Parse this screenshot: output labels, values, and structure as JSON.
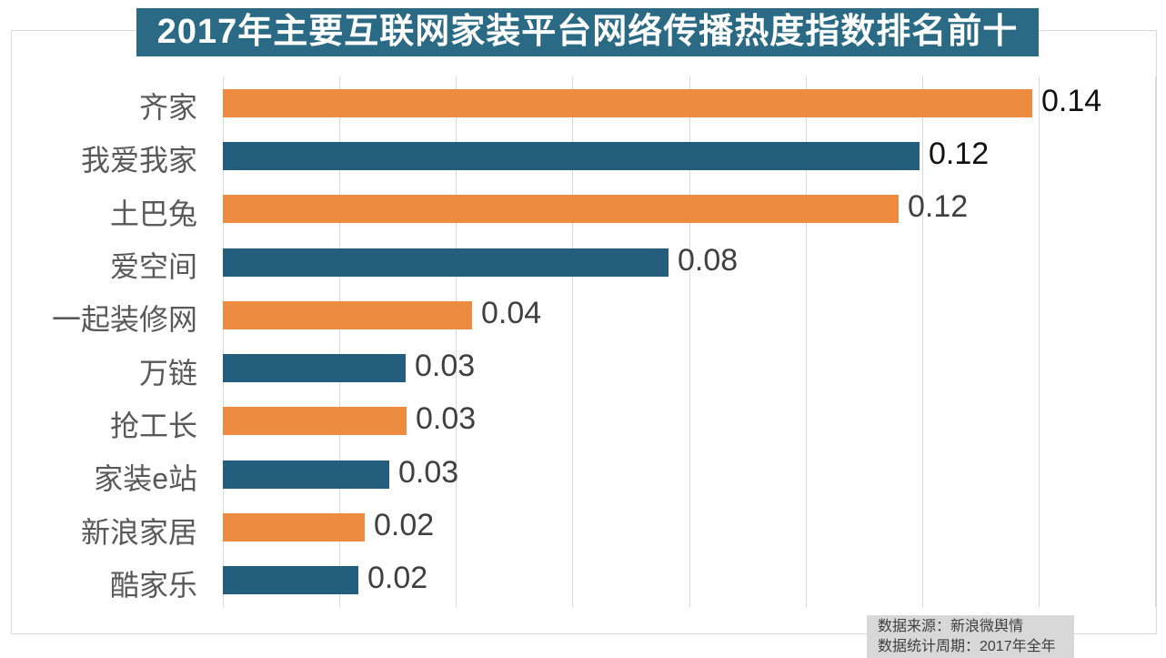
{
  "title": {
    "text": "2017年主要互联网家装平台网络传播热度指数排名前十",
    "background_color": "#2a6a84",
    "text_color": "#ffffff"
  },
  "source": {
    "line1": "数据来源：新浪微舆情",
    "line2": "数据统计周期：2017年全年"
  },
  "chart_data": {
    "type": "bar",
    "orientation": "horizontal",
    "title": "2017年主要互联网家装平台网络传播热度指数排名前十",
    "xlabel": "",
    "ylabel": "",
    "xlim": [
      0,
      0.16
    ],
    "gridline_interval": 0.02,
    "grid": true,
    "legend": false,
    "categories": [
      "齐家",
      "我爱我家",
      "土巴兔",
      "爱空间",
      "一起装修网",
      "万链",
      "抢工长",
      "家装e站",
      "新浪家居",
      "酷家乐"
    ],
    "values": [
      0.14,
      0.12,
      0.12,
      0.08,
      0.04,
      0.03,
      0.03,
      0.03,
      0.02,
      0.02
    ],
    "items": [
      {
        "label": "齐家",
        "display_value": "0.14",
        "bar_length_est": 0.139,
        "bar_color": "#ed8c41",
        "value_color": "#111111"
      },
      {
        "label": "我爱我家",
        "display_value": "0.12",
        "bar_length_est": 0.1195,
        "bar_color": "#235e7d",
        "value_color": "#111111"
      },
      {
        "label": "土巴兔",
        "display_value": "0.12",
        "bar_length_est": 0.116,
        "bar_color": "#ed8c41",
        "value_color": "#404040"
      },
      {
        "label": "爱空间",
        "display_value": "0.08",
        "bar_length_est": 0.0765,
        "bar_color": "#235e7d",
        "value_color": "#404040"
      },
      {
        "label": "一起装修网",
        "display_value": "0.04",
        "bar_length_est": 0.0427,
        "bar_color": "#ed8c41",
        "value_color": "#404040"
      },
      {
        "label": "万链",
        "display_value": "0.03",
        "bar_length_est": 0.0314,
        "bar_color": "#235e7d",
        "value_color": "#404040"
      },
      {
        "label": "抢工长",
        "display_value": "0.03",
        "bar_length_est": 0.0316,
        "bar_color": "#ed8c41",
        "value_color": "#404040"
      },
      {
        "label": "家装e站",
        "display_value": "0.03",
        "bar_length_est": 0.0286,
        "bar_color": "#235e7d",
        "value_color": "#404040"
      },
      {
        "label": "新浪家居",
        "display_value": "0.02",
        "bar_length_est": 0.0244,
        "bar_color": "#ed8c41",
        "value_color": "#404040"
      },
      {
        "label": "酷家乐",
        "display_value": "0.02",
        "bar_length_est": 0.0232,
        "bar_color": "#235e7d",
        "value_color": "#404040"
      }
    ],
    "colors": {
      "orange_series": "#ed8c41",
      "blue_series": "#235e7d",
      "gridline": "#d9d9d9",
      "category_label": "#595959"
    }
  }
}
